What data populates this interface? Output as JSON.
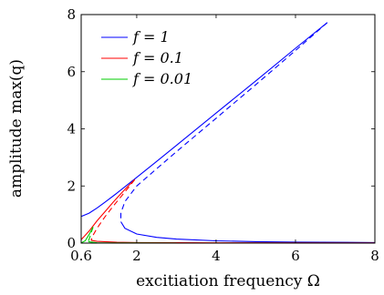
{
  "chart_data": {
    "type": "line",
    "title": "",
    "xlabel": "excitiation frequency Ω",
    "ylabel": "amplitude max(q)",
    "xlim": [
      0.6,
      8
    ],
    "ylim": [
      0,
      8
    ],
    "xticks": [
      0.6,
      2,
      4,
      6,
      8
    ],
    "xtick_labels": [
      "0.6",
      "2",
      "4",
      "6",
      "8"
    ],
    "yticks": [
      0,
      2,
      4,
      6,
      8
    ],
    "ytick_labels": [
      "0",
      "2",
      "4",
      "6",
      "8"
    ],
    "grid": false,
    "legend_position": "top-left",
    "series": [
      {
        "name": "f = 1",
        "color": "#0000ff",
        "stable_upper": [
          [
            0.6,
            0.93
          ],
          [
            0.8,
            1.05
          ],
          [
            1.0,
            1.23
          ],
          [
            1.2,
            1.43
          ],
          [
            1.5,
            1.75
          ],
          [
            2.0,
            2.3
          ],
          [
            2.5,
            2.86
          ],
          [
            3.0,
            3.42
          ],
          [
            4.0,
            4.55
          ],
          [
            5.0,
            5.68
          ],
          [
            6.0,
            6.82
          ],
          [
            6.8,
            7.72
          ]
        ],
        "unstable": [
          [
            6.8,
            7.72
          ],
          [
            6.0,
            6.74
          ],
          [
            5.0,
            5.55
          ],
          [
            4.0,
            4.37
          ],
          [
            3.0,
            3.2
          ],
          [
            2.5,
            2.6
          ],
          [
            2.0,
            2.0
          ],
          [
            1.7,
            1.45
          ],
          [
            1.6,
            1.05
          ],
          [
            1.6,
            0.75
          ]
        ],
        "stable_lower": [
          [
            1.6,
            0.75
          ],
          [
            1.7,
            0.52
          ],
          [
            2.0,
            0.32
          ],
          [
            2.5,
            0.2
          ],
          [
            3.0,
            0.14
          ],
          [
            4.0,
            0.08
          ],
          [
            5.0,
            0.05
          ],
          [
            6.0,
            0.035
          ],
          [
            8.0,
            0.02
          ]
        ]
      },
      {
        "name": "f = 0.1",
        "color": "#ff0000",
        "stable_upper": [
          [
            0.6,
            0.12
          ],
          [
            0.8,
            0.42
          ],
          [
            1.0,
            0.78
          ],
          [
            1.2,
            1.1
          ],
          [
            1.4,
            1.42
          ],
          [
            1.6,
            1.73
          ],
          [
            1.8,
            2.02
          ],
          [
            1.95,
            2.22
          ]
        ],
        "unstable": [
          [
            1.95,
            2.22
          ],
          [
            1.8,
            1.96
          ],
          [
            1.6,
            1.62
          ],
          [
            1.4,
            1.28
          ],
          [
            1.2,
            0.92
          ],
          [
            1.0,
            0.52
          ],
          [
            0.9,
            0.28
          ],
          [
            0.85,
            0.1
          ]
        ],
        "stable_lower": [
          [
            0.85,
            0.1
          ],
          [
            1.0,
            0.06
          ],
          [
            1.5,
            0.03
          ],
          [
            2.0,
            0.02
          ],
          [
            4.0,
            0.01
          ],
          [
            8.0,
            0.005
          ]
        ]
      },
      {
        "name": "f = 0.01",
        "color": "#00cc00",
        "stable_upper": [
          [
            0.6,
            0.005
          ],
          [
            0.7,
            0.08
          ],
          [
            0.8,
            0.3
          ],
          [
            0.9,
            0.56
          ]
        ],
        "unstable": [
          [
            0.9,
            0.56
          ],
          [
            0.86,
            0.4
          ],
          [
            0.82,
            0.22
          ],
          [
            0.78,
            0.05
          ]
        ],
        "stable_lower": [
          [
            0.78,
            0.05
          ],
          [
            1.0,
            0.01
          ],
          [
            2.0,
            0.005
          ],
          [
            3.0,
            0.003
          ]
        ]
      }
    ]
  }
}
